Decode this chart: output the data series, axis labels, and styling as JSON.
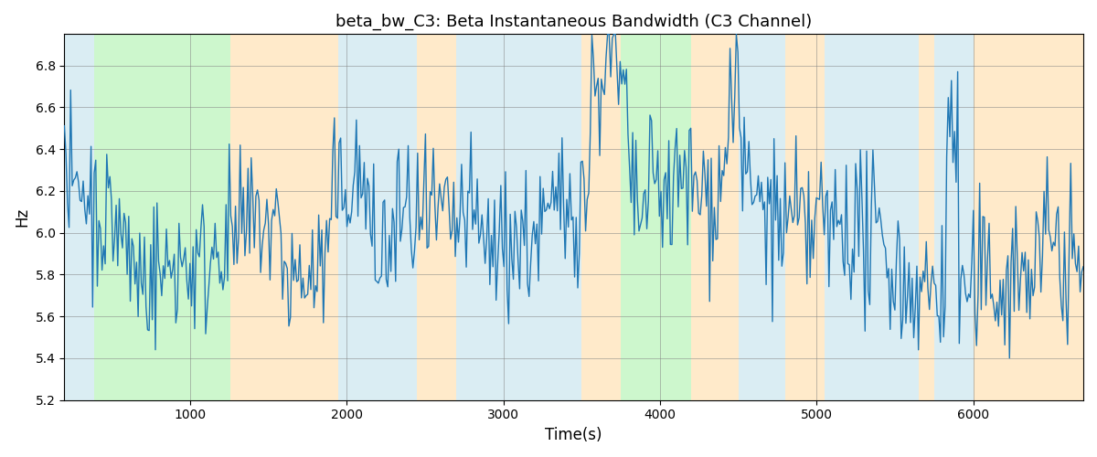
{
  "title": "beta_bw_C3: Beta Instantaneous Bandwidth (C3 Channel)",
  "xlabel": "Time(s)",
  "ylabel": "Hz",
  "xlim": [
    200,
    6700
  ],
  "ylim": [
    5.2,
    6.95
  ],
  "line_color": "#1f77b4",
  "line_width": 1.0,
  "background_color": "#ffffff",
  "grid": true,
  "bands": [
    {
      "xmin": 200,
      "xmax": 390,
      "color": "#add8e6",
      "alpha": 0.45
    },
    {
      "xmin": 390,
      "xmax": 1260,
      "color": "#90ee90",
      "alpha": 0.45
    },
    {
      "xmin": 1260,
      "xmax": 1950,
      "color": "#ffd9a0",
      "alpha": 0.55
    },
    {
      "xmin": 1950,
      "xmax": 2450,
      "color": "#add8e6",
      "alpha": 0.45
    },
    {
      "xmin": 2450,
      "xmax": 2700,
      "color": "#ffd9a0",
      "alpha": 0.55
    },
    {
      "xmin": 2700,
      "xmax": 3500,
      "color": "#add8e6",
      "alpha": 0.45
    },
    {
      "xmin": 3500,
      "xmax": 3750,
      "color": "#ffd9a0",
      "alpha": 0.55
    },
    {
      "xmin": 3750,
      "xmax": 4200,
      "color": "#90ee90",
      "alpha": 0.45
    },
    {
      "xmin": 4200,
      "xmax": 4500,
      "color": "#ffd9a0",
      "alpha": 0.55
    },
    {
      "xmin": 4500,
      "xmax": 4800,
      "color": "#add8e6",
      "alpha": 0.45
    },
    {
      "xmin": 4800,
      "xmax": 5050,
      "color": "#ffd9a0",
      "alpha": 0.55
    },
    {
      "xmin": 5050,
      "xmax": 5650,
      "color": "#add8e6",
      "alpha": 0.45
    },
    {
      "xmin": 5650,
      "xmax": 5750,
      "color": "#ffd9a0",
      "alpha": 0.55
    },
    {
      "xmin": 5750,
      "xmax": 6000,
      "color": "#add8e6",
      "alpha": 0.45
    },
    {
      "xmin": 6000,
      "xmax": 6700,
      "color": "#ffd9a0",
      "alpha": 0.55
    }
  ],
  "seed": 42,
  "n_points": 650,
  "t_start": 200,
  "t_end": 6700
}
